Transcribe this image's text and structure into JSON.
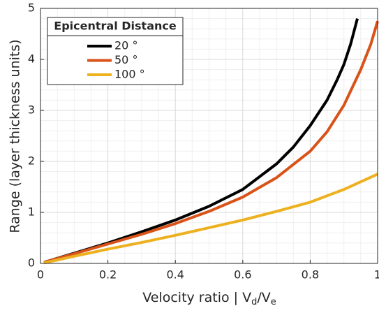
{
  "chart_data": {
    "type": "line",
    "x_label": [
      "Velocity ratio | V",
      "d",
      "/V",
      "e"
    ],
    "y_label": "Range (layer thickness units)",
    "legend_title": "Epicentral Distance",
    "legend": "upper left",
    "grid": true,
    "xlim": [
      0,
      1
    ],
    "ylim": [
      0,
      5
    ],
    "xticks": [
      0,
      0.2,
      0.4,
      0.6,
      0.8,
      1
    ],
    "yticks": [
      0,
      1,
      2,
      3,
      4,
      5
    ],
    "series": [
      {
        "name": "20 °",
        "color": "#000000",
        "x": [
          0.01,
          0.1,
          0.2,
          0.3,
          0.4,
          0.5,
          0.6,
          0.7,
          0.75,
          0.8,
          0.85,
          0.88,
          0.9,
          0.92,
          0.94
        ],
        "values": [
          0.02,
          0.2,
          0.4,
          0.62,
          0.85,
          1.12,
          1.45,
          1.95,
          2.28,
          2.7,
          3.2,
          3.6,
          3.9,
          4.3,
          4.8
        ]
      },
      {
        "name": "50 °",
        "color": "#d95319",
        "x": [
          0.01,
          0.1,
          0.2,
          0.3,
          0.4,
          0.5,
          0.6,
          0.7,
          0.8,
          0.85,
          0.9,
          0.95,
          0.98,
          1.0
        ],
        "values": [
          0.02,
          0.19,
          0.38,
          0.57,
          0.78,
          1.02,
          1.3,
          1.68,
          2.2,
          2.58,
          3.1,
          3.8,
          4.3,
          4.75
        ]
      },
      {
        "name": "100 °",
        "color": "#edb120",
        "x": [
          0.01,
          0.1,
          0.2,
          0.3,
          0.4,
          0.5,
          0.6,
          0.7,
          0.8,
          0.9,
          1.0
        ],
        "values": [
          0.01,
          0.14,
          0.28,
          0.41,
          0.55,
          0.7,
          0.85,
          1.02,
          1.2,
          1.45,
          1.75
        ]
      }
    ]
  }
}
